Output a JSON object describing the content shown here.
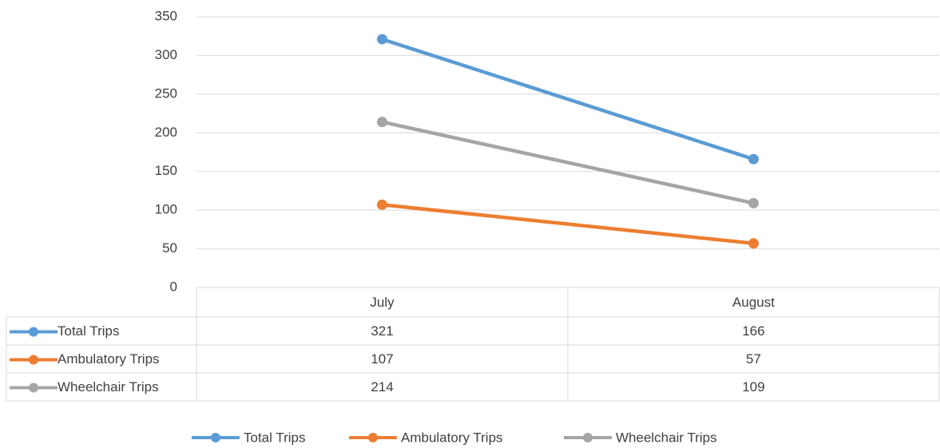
{
  "chart_data": {
    "type": "line",
    "categories": [
      "July",
      "August"
    ],
    "series": [
      {
        "name": "Total Trips",
        "color": "#5b9bd5",
        "values": [
          321,
          166
        ]
      },
      {
        "name": "Ambulatory Trips",
        "color": "#ed7d31",
        "values": [
          107,
          57
        ]
      },
      {
        "name": "Wheelchair Trips",
        "color": "#a5a5a5",
        "values": [
          214,
          109
        ]
      }
    ],
    "ylim": [
      0,
      350
    ],
    "yticks": [
      0,
      50,
      100,
      150,
      200,
      250,
      300,
      350
    ],
    "grid": true,
    "legend": "bottom",
    "data_table": true
  }
}
